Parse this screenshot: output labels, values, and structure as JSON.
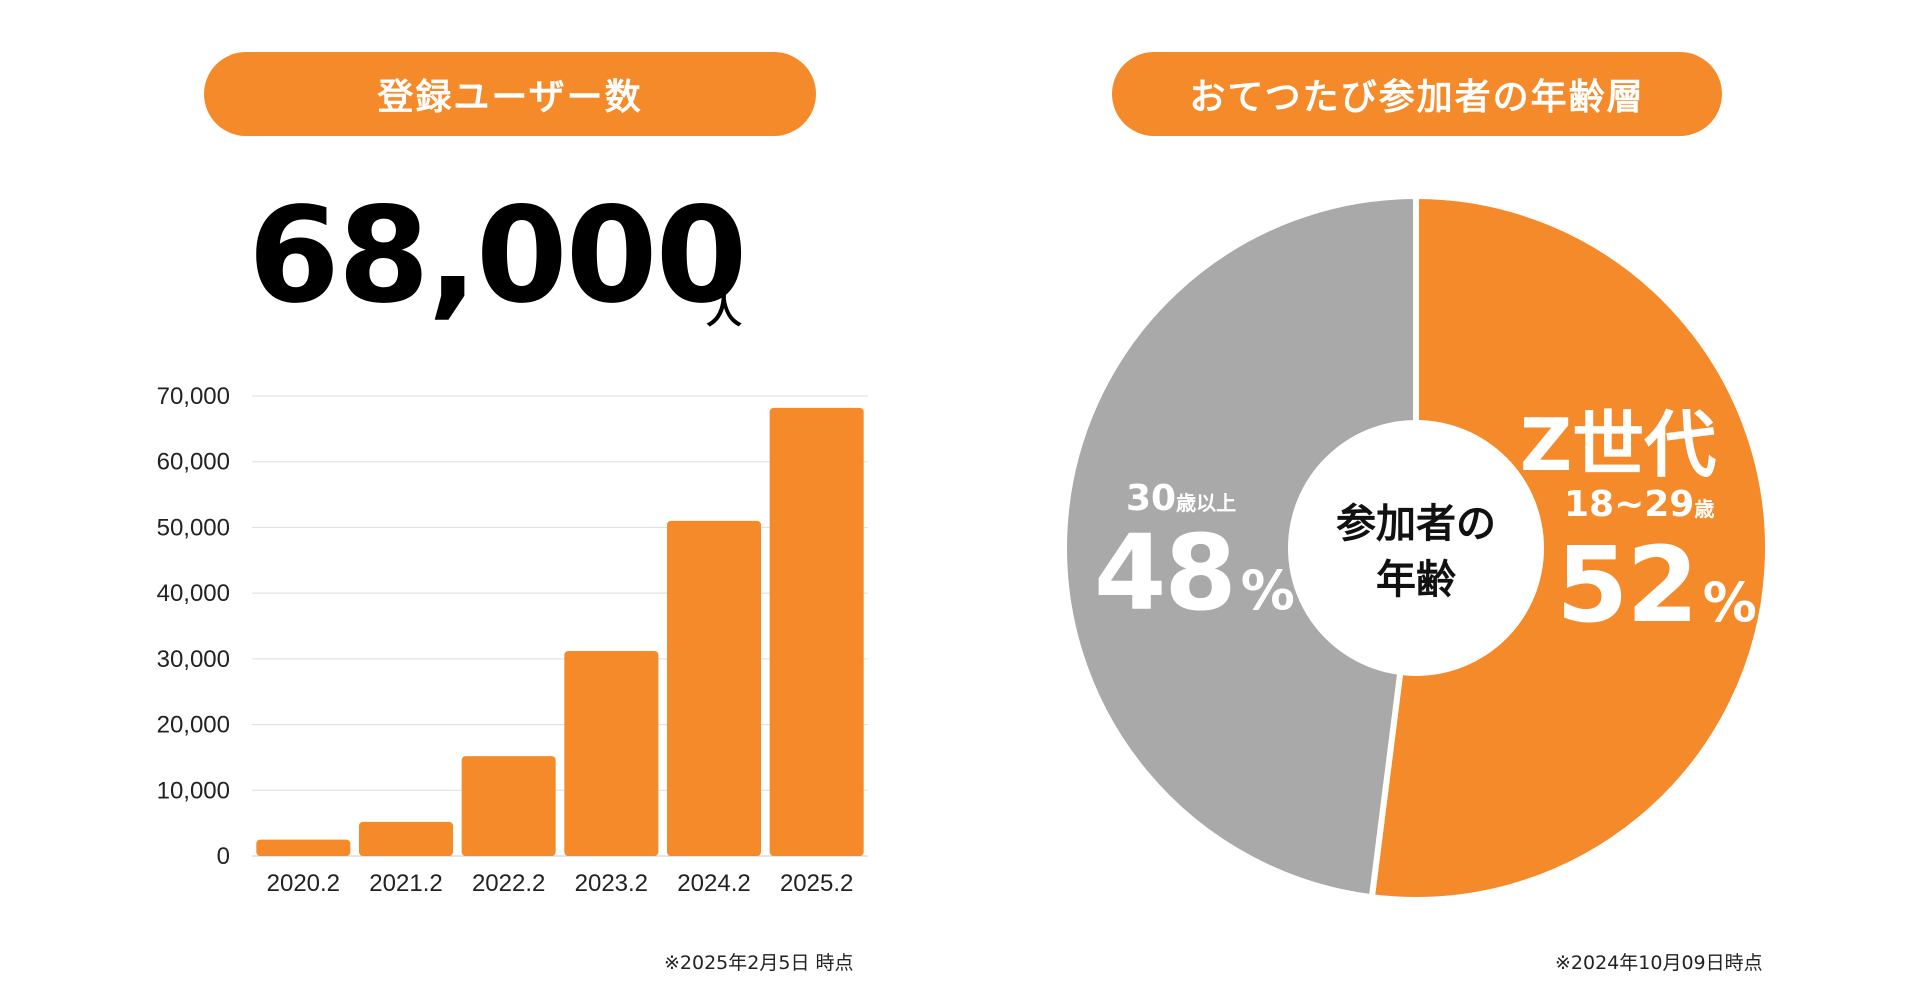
{
  "colors": {
    "accent": "#F58A2A",
    "gray": "#A9A9A9",
    "grid": "#DDDDDD",
    "text": "#111111"
  },
  "left_panel": {
    "pill_title": "登録ユーザー数",
    "big_number": "68,000",
    "big_unit": "人",
    "note": "※2025年2月5日 時点"
  },
  "right_panel": {
    "pill_title": "おてつたび参加者の年齢層",
    "center_label_line1": "参加者の",
    "center_label_line2": "年齢",
    "young": {
      "title": "Z世代",
      "age_num": "18~29",
      "age_unit": "歳",
      "percent_num": "52",
      "percent_sign": "%"
    },
    "old": {
      "age_num": "30",
      "age_unit": "歳以上",
      "percent_num": "48",
      "percent_sign": "%"
    },
    "note": "※2024年10月09日時点"
  },
  "chart_data": [
    {
      "type": "bar",
      "categories": [
        "2020.2",
        "2021.2",
        "2022.2",
        "2023.2",
        "2024.2",
        "2025.2"
      ],
      "values": [
        2500,
        5200,
        15200,
        31200,
        51000,
        68200
      ],
      "ylim": [
        0,
        70000
      ],
      "yticks": [
        0,
        10000,
        20000,
        30000,
        40000,
        50000,
        60000,
        70000
      ],
      "ytick_labels": [
        "0",
        "10,000",
        "20,000",
        "30,000",
        "40,000",
        "50,000",
        "60,000",
        "70,000"
      ],
      "grid": true,
      "title": "",
      "xlabel": "",
      "ylabel": ""
    },
    {
      "type": "pie",
      "labels": [
        "18~29歳",
        "30歳以上"
      ],
      "values": [
        52,
        48
      ],
      "colors": [
        "#F58A2A",
        "#A9A9A9"
      ]
    }
  ]
}
